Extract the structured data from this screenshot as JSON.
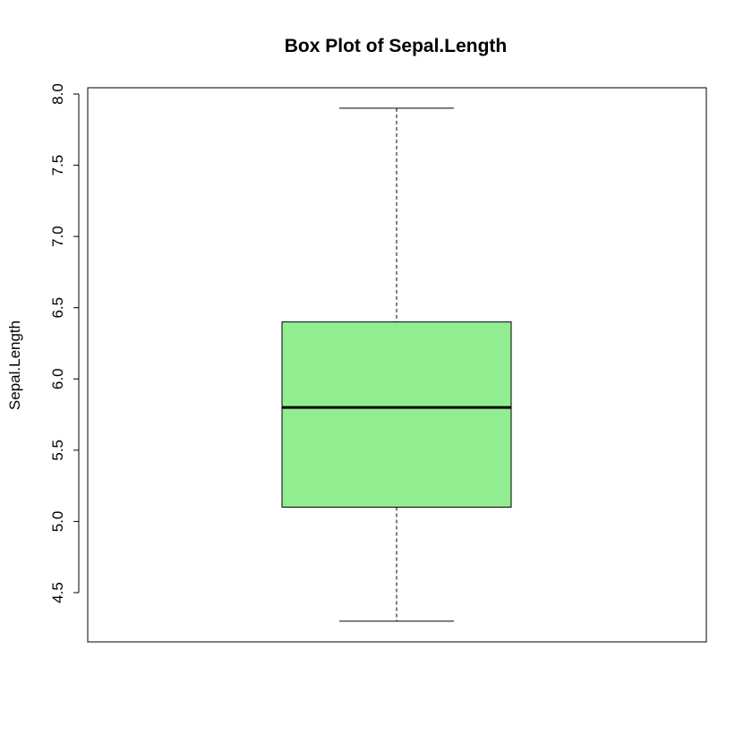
{
  "chart_data": {
    "type": "boxplot",
    "title": "Box Plot of Sepal.Length",
    "xlabel": "",
    "ylabel": "Sepal.Length",
    "ylim": [
      4.3,
      7.9
    ],
    "yticks": [
      4.5,
      5.0,
      5.5,
      6.0,
      6.5,
      7.0,
      7.5,
      8.0
    ],
    "ytick_labels": [
      "4.5",
      "5.0",
      "5.5",
      "6.0",
      "6.5",
      "7.0",
      "7.5",
      "8.0"
    ],
    "grid": false,
    "box": {
      "min": 4.3,
      "q1": 5.1,
      "median": 5.8,
      "q3": 6.4,
      "max": 7.9,
      "fill_color": "#90EE90"
    }
  }
}
